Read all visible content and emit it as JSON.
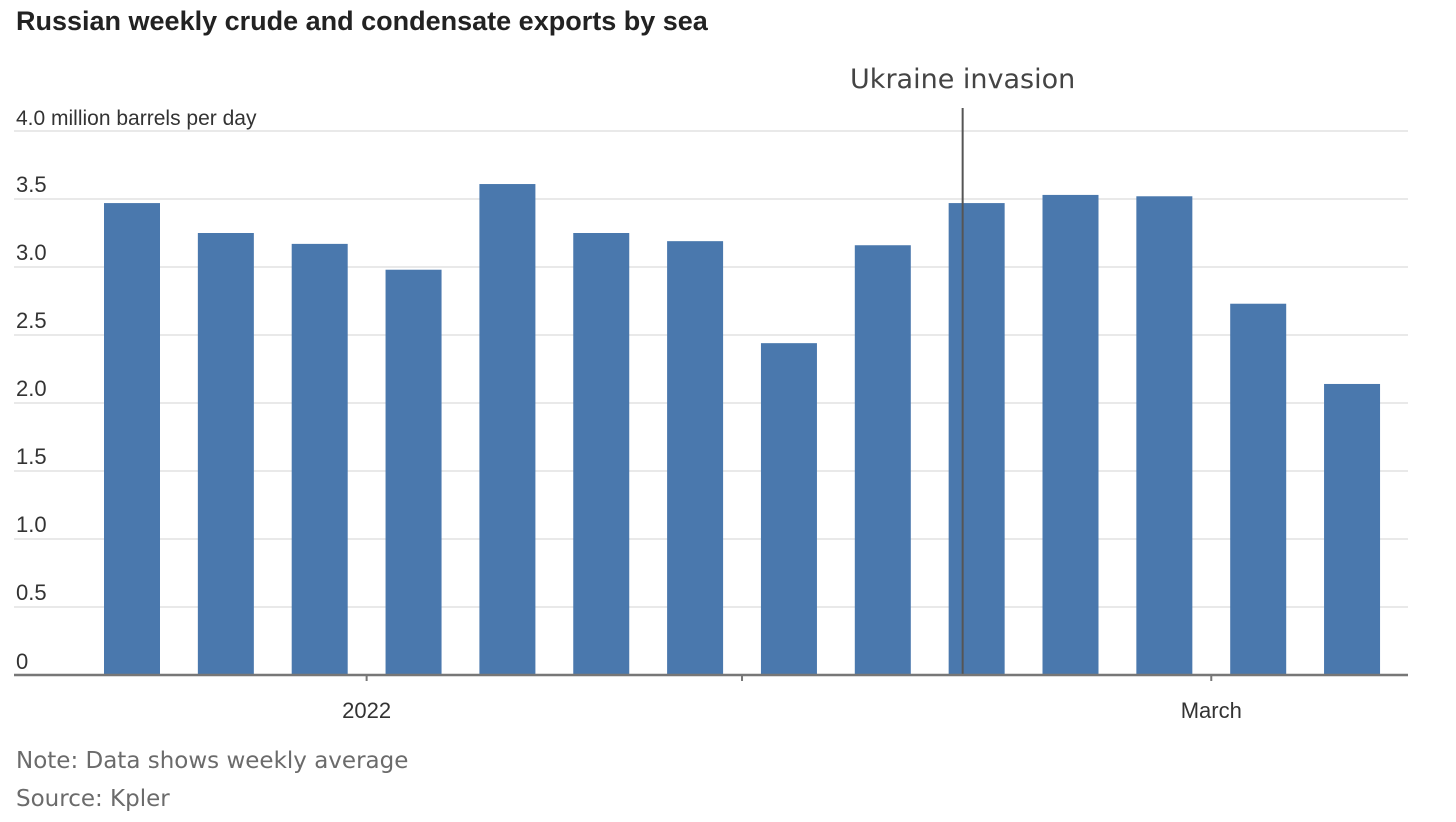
{
  "colors": {
    "bar": "#4a78ad",
    "grid": "#e9e9e9",
    "axis": "#777777",
    "annotation_line": "#555555"
  },
  "chart_data": {
    "type": "bar",
    "title": "Russian weekly crude and condensate exports by sea",
    "ylabel": "4.0 million barrels per day",
    "ylim": [
      0,
      4.0
    ],
    "y_ticks": [
      "0",
      "0.5",
      "1.0",
      "1.5",
      "2.0",
      "2.5",
      "3.0",
      "3.5"
    ],
    "y_tick_values": [
      0,
      0.5,
      1.0,
      1.5,
      2.0,
      2.5,
      3.0,
      3.5
    ],
    "x_tick_labels": [
      {
        "label": "2022",
        "after_bar_index": 2
      },
      {
        "label": "March",
        "after_bar_index": 11
      }
    ],
    "values": [
      3.47,
      3.25,
      3.17,
      2.98,
      3.61,
      3.25,
      3.19,
      2.44,
      3.16,
      3.47,
      3.53,
      3.52,
      2.73,
      2.14
    ],
    "grid": true,
    "annotation": {
      "label": "Ukraine invasion",
      "between_bars": [
        8,
        9
      ],
      "fraction_after": 0.25
    },
    "note": "Note: Data shows weekly average",
    "source": "Source: Kpler"
  }
}
